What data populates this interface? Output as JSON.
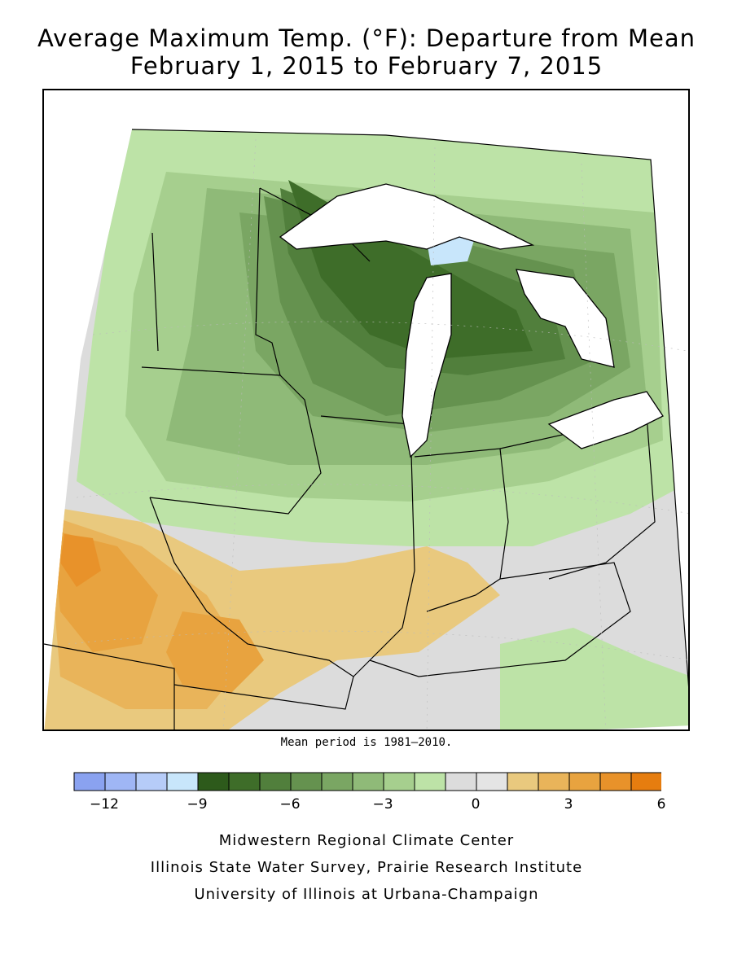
{
  "title": {
    "line1": "Average Maximum Temp. (°F): Departure from Mean",
    "line2": "February 1, 2015 to February 7, 2015"
  },
  "map": {
    "units": "°F",
    "regions_shown": [
      "Minnesota",
      "Wisconsin",
      "Michigan",
      "Iowa",
      "Illinois",
      "Indiana",
      "Ohio",
      "Missouri",
      "Kentucky"
    ],
    "note": "Mean period is 1981–2010."
  },
  "legend": {
    "bins": [
      {
        "from": -13,
        "to": -12,
        "color": "#8aa2f0"
      },
      {
        "from": -12,
        "to": -11,
        "color": "#9fb6f5"
      },
      {
        "from": -11,
        "to": -10,
        "color": "#b6ccf8"
      },
      {
        "from": -10,
        "to": -9,
        "color": "#c8e6fb"
      },
      {
        "from": -9,
        "to": -8,
        "color": "#2d5a1b"
      },
      {
        "from": -8,
        "to": -7,
        "color": "#3e6d29"
      },
      {
        "from": -7,
        "to": -6,
        "color": "#517f3c"
      },
      {
        "from": -6,
        "to": -5,
        "color": "#65924f"
      },
      {
        "from": -5,
        "to": -4,
        "color": "#7aa663"
      },
      {
        "from": -4,
        "to": -3,
        "color": "#8fba78"
      },
      {
        "from": -3,
        "to": -2,
        "color": "#a6cf8e"
      },
      {
        "from": -2,
        "to": -1,
        "color": "#bde3a7"
      },
      {
        "from": -1,
        "to": 0,
        "color": "#dcdcdc"
      },
      {
        "from": 0,
        "to": 1,
        "color": "#e4e4e4"
      },
      {
        "from": 1,
        "to": 2,
        "color": "#e9c97e"
      },
      {
        "from": 2,
        "to": 3,
        "color": "#e9b45a"
      },
      {
        "from": 3,
        "to": 4,
        "color": "#e8a33f"
      },
      {
        "from": 4,
        "to": 5,
        "color": "#e8922a"
      },
      {
        "from": 5,
        "to": 6,
        "color": "#e67d0f"
      }
    ],
    "tick_labels": [
      "−12",
      "−9",
      "−6",
      "−3",
      "0",
      "3",
      "6"
    ]
  },
  "credits": {
    "line1": "Midwestern Regional Climate Center",
    "line2": "Illinois State Water Survey, Prairie Research Institute",
    "line3": "University of Illinois at Urbana-Champaign"
  }
}
